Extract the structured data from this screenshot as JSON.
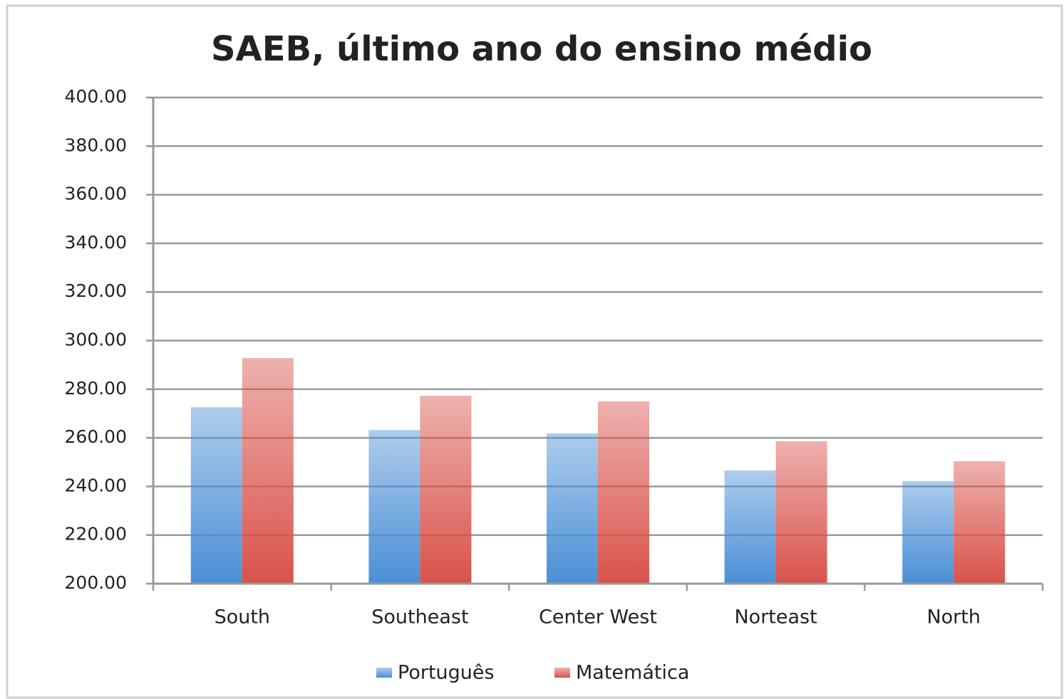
{
  "chart_data": {
    "type": "bar",
    "title": "SAEB, último ano do ensino médio",
    "categories": [
      "South",
      "Southeast",
      "Center West",
      "Norteast",
      "North"
    ],
    "series": [
      {
        "name": "Português",
        "color": "#4a8fd6",
        "values": [
          272.6,
          263.2,
          261.8,
          246.6,
          242.2
        ]
      },
      {
        "name": "Matemática",
        "color": "#d9524a",
        "values": [
          292.8,
          277.3,
          275.0,
          258.6,
          250.4
        ]
      }
    ],
    "ylim": [
      200,
      400
    ],
    "yticks": [
      {
        "value": 200,
        "label": "200.00"
      },
      {
        "value": 220,
        "label": "220.00"
      },
      {
        "value": 240,
        "label": "240.00"
      },
      {
        "value": 260,
        "label": "260.00"
      },
      {
        "value": 280,
        "label": "280.00"
      },
      {
        "value": 300,
        "label": "300.00"
      },
      {
        "value": 320,
        "label": "320.00"
      },
      {
        "value": 340,
        "label": "340.00"
      },
      {
        "value": 360,
        "label": "360.00"
      },
      {
        "value": 380,
        "label": "380.00"
      },
      {
        "value": 400,
        "label": "400.00"
      }
    ],
    "grid": true,
    "legend": "bottom"
  }
}
